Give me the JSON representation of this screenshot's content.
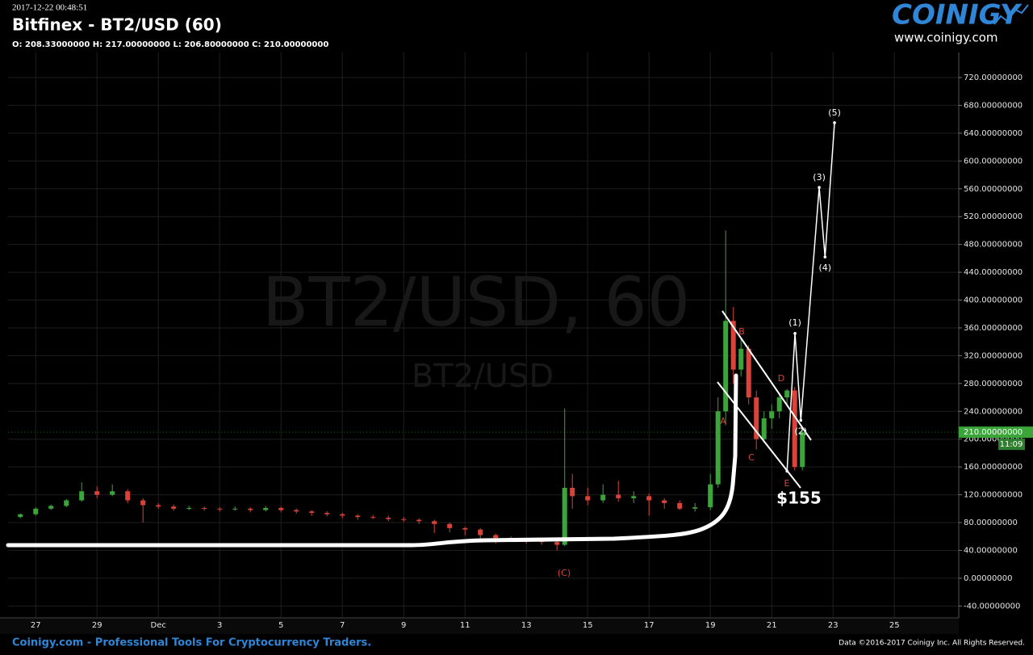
{
  "header": {
    "timestamp": "2017-12-22 00:48:51",
    "title": "Bitfinex - BT2/USD (60)",
    "ohlc": "O: 208.33000000 H: 217.00000000 L: 206.80000000 C: 210.00000000",
    "logo": "COINIGY",
    "website": "www.coinigy.com"
  },
  "chart_data": {
    "type": "candlestick",
    "watermark": "BT2/USD, 60",
    "watermark_sub": "BT2/USD",
    "x": [
      -0.5,
      0,
      0.5,
      1,
      1.5,
      2,
      2.5,
      3,
      3.5,
      4,
      4.5,
      5,
      5.5,
      6,
      6.5,
      7,
      7.5,
      8,
      8.5,
      9,
      9.5,
      10,
      10.5,
      11,
      11.5,
      12,
      12.5,
      13,
      13.5,
      14,
      14.5,
      15,
      15.5,
      16,
      16.5,
      17,
      17.25,
      17.5,
      18,
      18.5,
      19,
      19.5,
      20,
      20.5,
      21,
      21.5,
      22,
      22.25,
      22.5,
      22.75,
      23,
      23.25,
      23.5,
      23.75,
      24,
      24.25,
      24.5,
      24.75,
      25
    ],
    "open": [
      88,
      92,
      100,
      104,
      112,
      125,
      120,
      125,
      112,
      105,
      103,
      100,
      101,
      100,
      99,
      100,
      98,
      101,
      98,
      96,
      94,
      92,
      90,
      88,
      87,
      85,
      84,
      82,
      78,
      72,
      70,
      62,
      58,
      55,
      54,
      52,
      48,
      130,
      118,
      112,
      120,
      115,
      118,
      112,
      108,
      100,
      102,
      135,
      240,
      370,
      300,
      330,
      260,
      200,
      230,
      240,
      260,
      270,
      160
    ],
    "high": [
      93,
      102,
      106,
      114,
      138,
      132,
      135,
      128,
      115,
      108,
      106,
      104,
      103,
      102,
      103,
      102,
      104,
      103,
      100,
      98,
      96,
      94,
      92,
      91,
      90,
      88,
      86,
      84,
      80,
      74,
      72,
      64,
      60,
      58,
      56,
      55,
      244,
      150,
      130,
      135,
      140,
      125,
      122,
      115,
      112,
      108,
      150,
      260,
      500,
      390,
      345,
      335,
      270,
      240,
      250,
      265,
      272,
      275,
      218
    ],
    "low": [
      86,
      90,
      98,
      102,
      110,
      115,
      118,
      108,
      80,
      100,
      97,
      98,
      97,
      96,
      97,
      95,
      96,
      95,
      93,
      90,
      89,
      86,
      84,
      85,
      82,
      81,
      78,
      65,
      66,
      62,
      52,
      50,
      52,
      50,
      48,
      40,
      46,
      100,
      105,
      108,
      110,
      108,
      90,
      100,
      98,
      96,
      98,
      130,
      220,
      280,
      290,
      250,
      185,
      195,
      215,
      230,
      250,
      155,
      155
    ],
    "close": [
      92,
      100,
      104,
      112,
      125,
      120,
      125,
      112,
      105,
      103,
      100,
      101,
      100,
      99,
      100,
      98,
      101,
      98,
      96,
      94,
      92,
      90,
      88,
      87,
      85,
      84,
      82,
      78,
      72,
      70,
      62,
      58,
      55,
      54,
      52,
      48,
      130,
      118,
      112,
      120,
      115,
      118,
      112,
      108,
      100,
      102,
      135,
      240,
      370,
      300,
      330,
      260,
      200,
      230,
      240,
      260,
      270,
      160,
      210
    ],
    "up_color": "#3aa63a",
    "down_color": "#d9433a",
    "xlim": [
      -0.9,
      30.1
    ],
    "ylim": [
      -57,
      756
    ],
    "xticks": [
      {
        "value": 0,
        "label": "27"
      },
      {
        "value": 2,
        "label": "29"
      },
      {
        "value": 4,
        "label": "Dec"
      },
      {
        "value": 6,
        "label": "3"
      },
      {
        "value": 8,
        "label": "5"
      },
      {
        "value": 10,
        "label": "7"
      },
      {
        "value": 12,
        "label": "9"
      },
      {
        "value": 14,
        "label": "11"
      },
      {
        "value": 16,
        "label": "13"
      },
      {
        "value": 18,
        "label": "15"
      },
      {
        "value": 20,
        "label": "17"
      },
      {
        "value": 22,
        "label": "19"
      },
      {
        "value": 24,
        "label": "21"
      },
      {
        "value": 26,
        "label": "23"
      },
      {
        "value": 28,
        "label": "25"
      }
    ],
    "yticks": [
      {
        "value": 720,
        "label": "720.00000000"
      },
      {
        "value": 680,
        "label": "680.00000000"
      },
      {
        "value": 640,
        "label": "640.00000000"
      },
      {
        "value": 600,
        "label": "600.00000000"
      },
      {
        "value": 560,
        "label": "560.00000000"
      },
      {
        "value": 520,
        "label": "520.00000000"
      },
      {
        "value": 480,
        "label": "480.00000000"
      },
      {
        "value": 440,
        "label": "440.00000000"
      },
      {
        "value": 400,
        "label": "400.00000000"
      },
      {
        "value": 360,
        "label": "360.00000000"
      },
      {
        "value": 320,
        "label": "320.00000000"
      },
      {
        "value": 280,
        "label": "280.00000000"
      },
      {
        "value": 240,
        "label": "240.00000000"
      },
      {
        "value": 200,
        "label": "200.00000000"
      },
      {
        "value": 160,
        "label": "160.00000000"
      },
      {
        "value": 120,
        "label": "120.00000000"
      },
      {
        "value": 80,
        "label": "80.00000000"
      },
      {
        "value": 40,
        "label": "40.00000000"
      },
      {
        "value": 0,
        "label": "0.00000000"
      },
      {
        "value": -40,
        "label": "-40.00000000"
      }
    ],
    "grid": true,
    "last_price": {
      "value": 210,
      "label": "210.00000000"
    },
    "countdown": "11:09",
    "projection": {
      "x": [
        24.5,
        24.76,
        24.95,
        25.55,
        25.74,
        26.05
      ],
      "y": [
        154,
        352,
        227,
        562,
        462,
        655
      ],
      "labels": [
        null,
        "(1)",
        "(2)",
        "(3)",
        "(4)",
        "(5)"
      ]
    },
    "wave_labels": [
      "A",
      "B",
      "C",
      "D",
      "E",
      "(C)"
    ],
    "price_note": "$155"
  },
  "footer": {
    "tagline": "Coinigy.com - Professional Tools For Cryptocurrency Traders.",
    "copyright": "Data ©2016-2017 Coinigy Inc. All Rights Reserved."
  }
}
